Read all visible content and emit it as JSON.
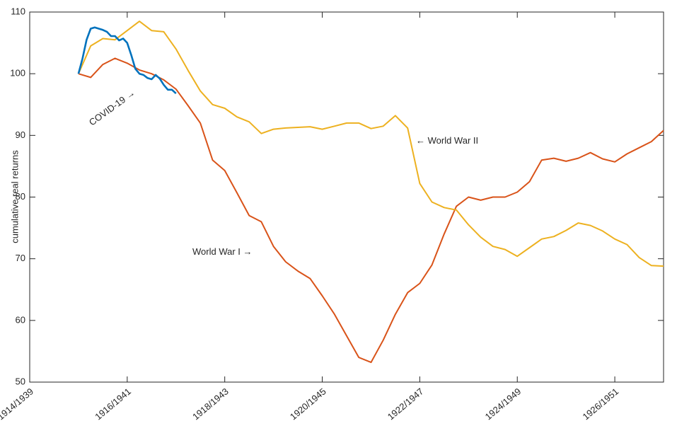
{
  "chart_data": {
    "type": "line",
    "ylabel": "cumulative real returns",
    "xlim": [
      0,
      156
    ],
    "ylim": [
      50,
      110
    ],
    "xticks": [
      {
        "value": 0,
        "label": "1914/1939"
      },
      {
        "value": 24,
        "label": "1916/1941"
      },
      {
        "value": 48,
        "label": "1918/1943"
      },
      {
        "value": 72,
        "label": "1920/1945"
      },
      {
        "value": 96,
        "label": "1922/1947"
      },
      {
        "value": 120,
        "label": "1924/1949"
      },
      {
        "value": 144,
        "label": "1926/1951"
      }
    ],
    "yticks": [
      50,
      60,
      70,
      80,
      90,
      100,
      110
    ],
    "grid": false,
    "series": [
      {
        "name": "World War I",
        "color": "#D95319",
        "x": [
          12,
          15,
          18,
          21,
          24,
          27,
          30,
          33,
          36,
          39,
          42,
          45,
          48,
          51,
          54,
          57,
          60,
          63,
          66,
          69,
          72,
          75,
          78,
          81,
          84,
          87,
          90,
          93,
          96,
          99,
          102,
          105,
          108,
          111,
          114,
          117,
          120,
          123,
          126,
          129,
          132,
          135,
          138,
          141,
          144,
          147,
          150,
          153,
          156
        ],
        "values": [
          100,
          99.4,
          101.5,
          102.5,
          101.7,
          100.6,
          100,
          99,
          97.5,
          94.8,
          92,
          86,
          84.3,
          80.7,
          77,
          76,
          72,
          69.5,
          68,
          66.8,
          64,
          61,
          57.5,
          54,
          53.2,
          56.8,
          61,
          64.5,
          66,
          69,
          74,
          78.5,
          80,
          79.5,
          80,
          80,
          80.8,
          82.5,
          86,
          86.3,
          85.8,
          86.3,
          87.2,
          86.2,
          85.7,
          87,
          88,
          89,
          90.8
        ]
      },
      {
        "name": "World War II",
        "color": "#EDB120",
        "x": [
          12,
          15,
          18,
          21,
          24,
          27,
          30,
          33,
          36,
          39,
          42,
          45,
          48,
          51,
          54,
          57,
          60,
          63,
          66,
          69,
          72,
          75,
          78,
          81,
          84,
          87,
          90,
          93,
          96,
          99,
          102,
          105,
          108,
          111,
          114,
          117,
          120,
          123,
          126,
          129,
          132,
          135,
          138,
          141,
          144,
          147,
          150,
          153,
          156
        ],
        "values": [
          100,
          104.5,
          105.7,
          105.5,
          107,
          108.5,
          107,
          106.8,
          104,
          100.5,
          97.2,
          95,
          94.4,
          93,
          92.2,
          90.3,
          91,
          91.2,
          91.3,
          91.4,
          91,
          91.5,
          92,
          92,
          91.1,
          91.5,
          93.2,
          91.2,
          82.2,
          79.2,
          78.3,
          77.9,
          75.5,
          73.5,
          72,
          71.5,
          70.4,
          71.8,
          73.2,
          73.6,
          74.6,
          75.8,
          75.4,
          74.5,
          73.2,
          72.3,
          70.2,
          68.9,
          68.8
        ]
      },
      {
        "name": "COVID-19",
        "color": "#0072BD",
        "x": [
          12,
          13,
          14,
          15,
          16,
          17,
          18,
          19,
          20,
          21,
          22,
          23,
          24,
          25,
          26,
          27,
          28,
          29,
          30,
          31,
          32,
          33,
          34,
          35,
          36
        ],
        "values": [
          100,
          102.5,
          105.5,
          107.3,
          107.5,
          107.3,
          107.1,
          106.8,
          106.1,
          106.1,
          105.4,
          105.7,
          105,
          103,
          100.8,
          100,
          99.8,
          99.3,
          99.1,
          99.8,
          99.2,
          98.2,
          97.4,
          97.4,
          96.8
        ]
      }
    ],
    "annotations": [
      "COVID-19 →",
      "World War I →",
      "← World War II"
    ]
  }
}
